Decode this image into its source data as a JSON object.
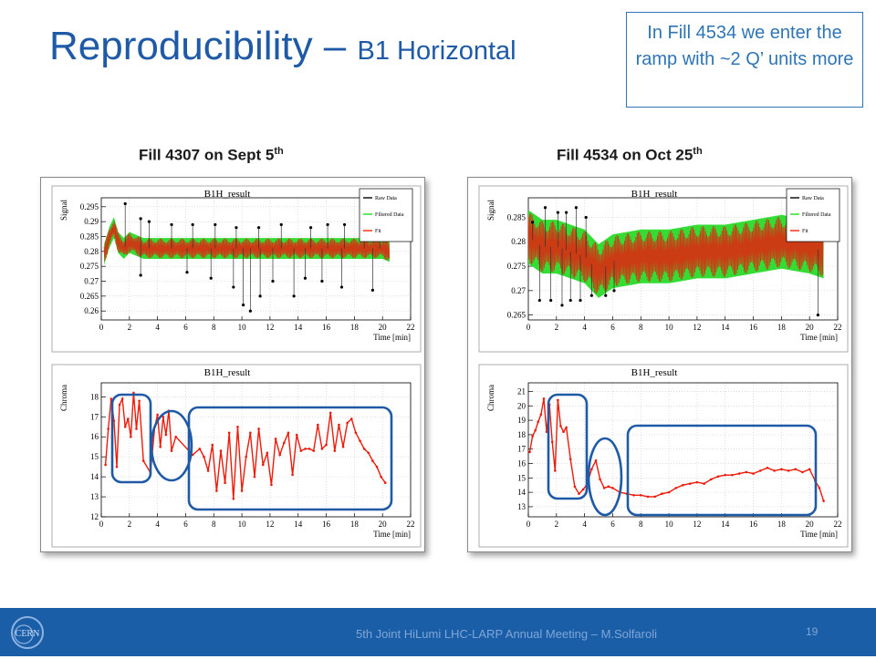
{
  "slide": {
    "title": "Reproducibility – ",
    "title_sub": "B1 Horizontal",
    "callout": "In Fill 4534 we enter the ramp with ~2 Q’ units more",
    "footer": "5th Joint HiLumi LHC-LARP Annual Meeting – M.Solfaroli",
    "page_number": "19",
    "accent_color": "#1f5aa6",
    "footer_color": "#1b5ea8",
    "logo_text": "CERN"
  },
  "panels": [
    {
      "label_main": "Fill 4307 on Sept 5",
      "label_sup": "th"
    },
    {
      "label_main": "Fill 4534 on Oct 25",
      "label_sup": "th"
    }
  ],
  "legend": [
    "Raw Data",
    "Filtered Data",
    "Fit"
  ],
  "chart_data": [
    {
      "type": "line",
      "panel": 0,
      "title": "B1H_result",
      "xlabel": "Time [min]",
      "ylabel": "Signal",
      "xlim": [
        0,
        22
      ],
      "ylim": [
        0.257,
        0.298
      ],
      "xticks": [
        0,
        2,
        4,
        6,
        8,
        10,
        12,
        14,
        16,
        18,
        20,
        22
      ],
      "yticks": [
        0.26,
        0.265,
        0.27,
        0.275,
        0.28,
        0.285,
        0.29,
        0.295
      ],
      "ytick_labels": [
        "0.26",
        "0.265",
        "0.27",
        "0.275",
        "0.28",
        "0.285",
        "0.29",
        "0.295"
      ],
      "series": [
        {
          "name": "Raw Data",
          "x": [
            0.2,
            0.6,
            0.9,
            1.2,
            1.6,
            2,
            3,
            4,
            6,
            8,
            10,
            12,
            14,
            16,
            18,
            20,
            20.5
          ],
          "y": [
            0.279,
            0.285,
            0.288,
            0.283,
            0.281,
            0.283,
            0.281,
            0.281,
            0.281,
            0.281,
            0.281,
            0.281,
            0.281,
            0.281,
            0.281,
            0.281,
            0.28
          ]
        }
      ],
      "band_half_width": 0.0035,
      "spikes": [
        [
          1.7,
          0.296
        ],
        [
          2.8,
          0.291
        ],
        [
          3.4,
          0.29
        ],
        [
          5,
          0.289
        ],
        [
          6.5,
          0.289
        ],
        [
          8.1,
          0.289
        ],
        [
          9.6,
          0.288
        ],
        [
          11.2,
          0.288
        ],
        [
          12.8,
          0.289
        ],
        [
          14.9,
          0.288
        ],
        [
          16.1,
          0.289
        ],
        [
          17.3,
          0.289
        ],
        [
          18.7,
          0.288
        ],
        [
          19.8,
          0.288
        ],
        [
          2.8,
          0.272
        ],
        [
          7.8,
          0.271
        ],
        [
          9.4,
          0.268
        ],
        [
          10.1,
          0.262
        ],
        [
          10.6,
          0.26
        ],
        [
          11.3,
          0.265
        ],
        [
          12.2,
          0.27
        ],
        [
          13.7,
          0.265
        ],
        [
          14.5,
          0.271
        ],
        [
          15.7,
          0.27
        ],
        [
          19.3,
          0.267
        ],
        [
          6.1,
          0.273
        ],
        [
          17.1,
          0.268
        ]
      ]
    },
    {
      "type": "line",
      "panel": 0,
      "title": "B1H_result",
      "xlabel": "Time [min]",
      "ylabel": "Chroma",
      "xlim": [
        0,
        22
      ],
      "ylim": [
        12,
        18.7
      ],
      "xticks": [
        0,
        2,
        4,
        6,
        8,
        10,
        12,
        14,
        16,
        18,
        20,
        22
      ],
      "yticks": [
        12,
        13,
        14,
        15,
        16,
        17,
        18
      ],
      "ytick_labels": [
        "12",
        "13",
        "14",
        "15",
        "16",
        "17",
        "18"
      ],
      "series": [
        {
          "name": "Fit",
          "x": [
            0.3,
            0.5,
            0.7,
            0.9,
            1.1,
            1.3,
            1.5,
            1.7,
            1.9,
            2.1,
            2.3,
            2.5,
            2.7,
            3.0,
            3.5,
            3.8,
            4.0,
            4.2,
            4.4,
            4.6,
            4.8,
            5.0,
            5.3,
            6.5,
            7.0,
            7.3,
            7.6,
            7.9,
            8.2,
            8.5,
            8.8,
            9.1,
            9.4,
            9.7,
            10.0,
            10.3,
            10.6,
            10.9,
            11.2,
            11.5,
            11.8,
            12.1,
            12.4,
            12.7,
            13.0,
            13.3,
            13.6,
            13.9,
            14.2,
            14.5,
            14.8,
            15.1,
            15.4,
            15.7,
            16.0,
            16.3,
            16.6,
            16.9,
            17.2,
            17.5,
            17.8,
            18.1,
            18.4,
            18.7,
            19.0,
            19.3,
            19.6,
            19.9,
            20.2
          ],
          "y": [
            14.6,
            16.4,
            17.9,
            16.8,
            14.5,
            17.6,
            17.9,
            16.5,
            16.9,
            16.0,
            18.2,
            16.4,
            17.8,
            14.8,
            14.2,
            16.5,
            17.1,
            15.5,
            17.0,
            16.1,
            17.3,
            15.3,
            16.0,
            15.1,
            15.4,
            15.0,
            14.3,
            15.6,
            13.3,
            15.3,
            13.7,
            16.2,
            12.9,
            16.5,
            13.3,
            15.0,
            16.2,
            14.0,
            16.4,
            14.6,
            15.2,
            13.6,
            15.9,
            15.1,
            15.7,
            16.2,
            14.1,
            16.1,
            15.3,
            15.4,
            15.4,
            15.3,
            16.6,
            15.4,
            15.6,
            17.2,
            15.3,
            16.6,
            15.5,
            16.7,
            16.9,
            16.2,
            15.8,
            15.4,
            15.2,
            14.8,
            14.5,
            14.0,
            13.7
          ]
        }
      ]
    },
    {
      "type": "line",
      "panel": 1,
      "title": "B1H_result",
      "xlabel": "Time [min]",
      "ylabel": "Signal",
      "xlim": [
        0,
        22
      ],
      "ylim": [
        0.264,
        0.289
      ],
      "xticks": [
        0,
        2,
        4,
        6,
        8,
        10,
        12,
        14,
        16,
        18,
        20,
        22
      ],
      "yticks": [
        0.265,
        0.27,
        0.275,
        0.28,
        0.285
      ],
      "ytick_labels": [
        "0.265",
        "0.27",
        "0.275",
        "0.28",
        "0.285"
      ],
      "series": [
        {
          "name": "Raw Data",
          "x": [
            0,
            1,
            2,
            3,
            4,
            5,
            6,
            8,
            10,
            12,
            14,
            16,
            18,
            20,
            21
          ],
          "y": [
            0.281,
            0.279,
            0.279,
            0.278,
            0.277,
            0.274,
            0.276,
            0.277,
            0.277,
            0.278,
            0.278,
            0.279,
            0.28,
            0.279,
            0.278
          ]
        }
      ],
      "band_half_width": 0.0055,
      "spikes": [
        [
          1.2,
          0.287
        ],
        [
          2.1,
          0.286
        ],
        [
          2.7,
          0.286
        ],
        [
          3.4,
          0.287
        ],
        [
          4.1,
          0.285
        ],
        [
          0.3,
          0.284
        ],
        [
          1.6,
          0.268
        ],
        [
          2.4,
          0.267
        ],
        [
          3.0,
          0.268
        ],
        [
          3.7,
          0.268
        ],
        [
          4.5,
          0.269
        ],
        [
          5.5,
          0.269
        ],
        [
          6.1,
          0.27
        ],
        [
          0.8,
          0.268
        ],
        [
          20.6,
          0.265
        ]
      ]
    },
    {
      "type": "line",
      "panel": 1,
      "title": "B1H_result",
      "xlabel": "Time [min]",
      "ylabel": "Chroma",
      "xlim": [
        0,
        22
      ],
      "ylim": [
        12.3,
        21.6
      ],
      "xticks": [
        0,
        2,
        4,
        6,
        8,
        10,
        12,
        14,
        16,
        18,
        20,
        22
      ],
      "yticks": [
        13,
        14,
        15,
        16,
        17,
        18,
        19,
        20,
        21
      ],
      "ytick_labels": [
        "13",
        "14",
        "15",
        "16",
        "17",
        "18",
        "19",
        "20",
        "21"
      ],
      "series": [
        {
          "name": "Fit",
          "x": [
            0.1,
            0.3,
            0.5,
            0.7,
            0.9,
            1.1,
            1.3,
            1.5,
            1.7,
            1.9,
            2.1,
            2.3,
            2.5,
            2.7,
            3.0,
            3.3,
            3.6,
            3.9,
            4.2,
            4.5,
            4.8,
            5.1,
            5.4,
            5.7,
            6.0,
            6.5,
            7.0,
            7.5,
            8.0,
            8.5,
            9.0,
            9.5,
            10.0,
            10.5,
            11.0,
            11.5,
            12.0,
            12.5,
            13.0,
            13.5,
            14.0,
            14.5,
            15.0,
            15.5,
            16.0,
            16.5,
            17.0,
            17.5,
            18.0,
            18.5,
            19.0,
            19.5,
            20.0,
            20.4,
            20.7,
            21.0
          ],
          "y": [
            16.8,
            17.9,
            18.3,
            18.9,
            19.4,
            20.5,
            18.2,
            20.1,
            17.5,
            15.5,
            20.4,
            18.6,
            18.2,
            18.5,
            16.3,
            14.4,
            13.9,
            14.2,
            14.6,
            15.6,
            16.2,
            14.9,
            14.3,
            14.4,
            14.3,
            14.0,
            13.9,
            13.8,
            13.8,
            13.7,
            13.7,
            13.9,
            14.0,
            14.3,
            14.5,
            14.6,
            14.7,
            14.6,
            14.9,
            15.1,
            15.2,
            15.2,
            15.3,
            15.4,
            15.3,
            15.5,
            15.7,
            15.5,
            15.6,
            15.5,
            15.6,
            15.4,
            15.6,
            14.8,
            14.3,
            13.4
          ]
        }
      ]
    }
  ]
}
